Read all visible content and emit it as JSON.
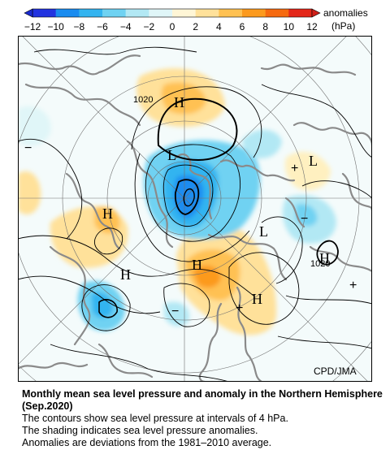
{
  "legend": {
    "title_line1": "anomalies",
    "title_line2": "(hPa)",
    "ticks": [
      "−12",
      "−10",
      "−8",
      "−6",
      "−4",
      "−2",
      "0",
      "2",
      "4",
      "6",
      "8",
      "10",
      "12"
    ],
    "colors": [
      "#2233e0",
      "#1a8cf0",
      "#33b4f0",
      "#6fd2f2",
      "#b2e8f4",
      "#e0f6f8",
      "#fff6d6",
      "#ffe19a",
      "#ffc152",
      "#fc9a1e",
      "#f66a10",
      "#e4271a"
    ]
  },
  "map": {
    "credit": "CPD/JMA",
    "pressure_centers": [
      {
        "type": "H",
        "value": "1020"
      },
      {
        "type": "L"
      },
      {
        "type": "L"
      },
      {
        "type": "L"
      },
      {
        "type": "H"
      },
      {
        "type": "H"
      },
      {
        "type": "H"
      },
      {
        "type": "H"
      },
      {
        "type": "H",
        "value": "1020"
      }
    ],
    "isobar_labels": [
      "1020",
      "1020"
    ],
    "anomaly_signs": [
      "+",
      "−",
      "−",
      "−",
      "+",
      "+"
    ]
  },
  "caption": {
    "title": "Monthly mean sea level pressure and anomaly in the Northern Hemisphere (Sep.2020)",
    "lines": [
      "The contours show sea level pressure at intervals of 4 hPa.",
      "The shading indicates sea level pressure anomalies.",
      "Anomalies are deviations from the 1981–2010 average."
    ]
  }
}
